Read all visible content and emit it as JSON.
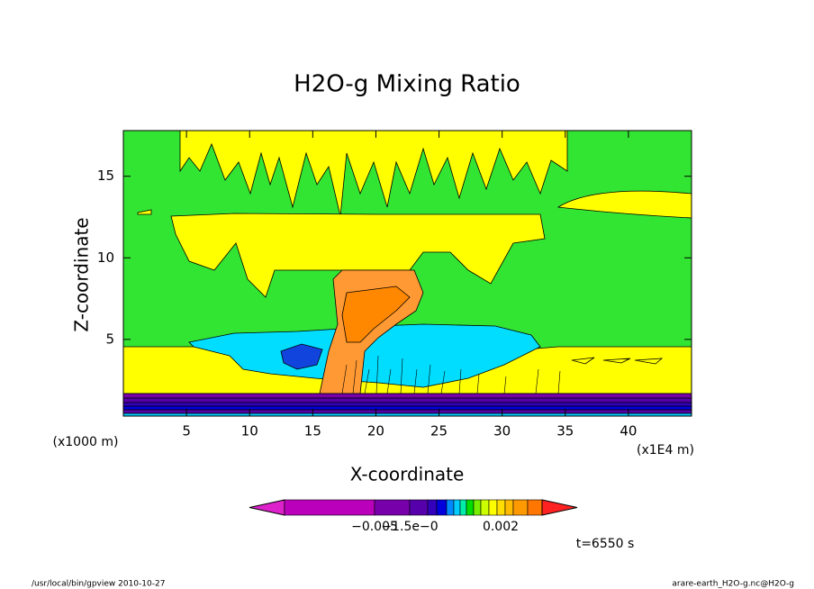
{
  "chart_data": {
    "type": "contour",
    "title": "H2O-g Mixing Ratio",
    "x_label": "X-coordinate",
    "y_label": "Z-coordinate",
    "x_scale_note": "(x1000 m)",
    "x_unit": "(x1E4 m)",
    "xlim": [
      0,
      45
    ],
    "xticks": [
      5,
      10,
      15,
      20,
      25,
      30,
      35,
      40
    ],
    "ylim": [
      0.3,
      17.8
    ],
    "yticks": [
      5,
      10,
      15
    ],
    "colorbar": {
      "colors": [
        "#dd22cc",
        "#bb00bb",
        "#7700aa",
        "#5500aa",
        "#3300bb",
        "#0000dd",
        "#0088ff",
        "#00ccff",
        "#00eeaa",
        "#00dd00",
        "#77ee00",
        "#ccff00",
        "#ffff00",
        "#ffdd00",
        "#ffbb00",
        "#ff9900",
        "#ff7700",
        "#ff2222"
      ],
      "labels": [
        "−0.005",
        "−1.5e−0",
        "0.002"
      ]
    },
    "time_label": "t=6550 s"
  },
  "footer": {
    "left": "/usr/local/bin/gpview  2010-10-27",
    "right": "arare-earth_H2O-g.nc@H2O-g"
  }
}
